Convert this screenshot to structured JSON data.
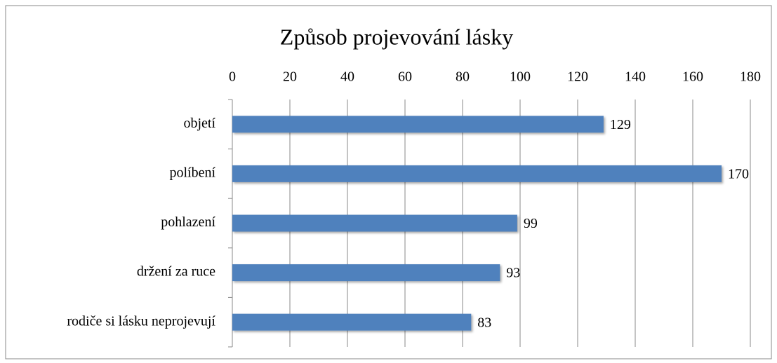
{
  "chart_data": {
    "type": "bar",
    "orientation": "horizontal",
    "title": "Způsob projevování lásky",
    "categories": [
      "objetí",
      "políbení",
      "pohlazení",
      "držení za ruce",
      "rodiče si lásku neprojevují"
    ],
    "values": [
      129,
      170,
      99,
      93,
      83
    ],
    "color": "#4f81bd",
    "xlim": [
      0,
      180
    ],
    "xticks": [
      0,
      20,
      40,
      60,
      80,
      100,
      120,
      140,
      160,
      180
    ],
    "grid": true
  }
}
